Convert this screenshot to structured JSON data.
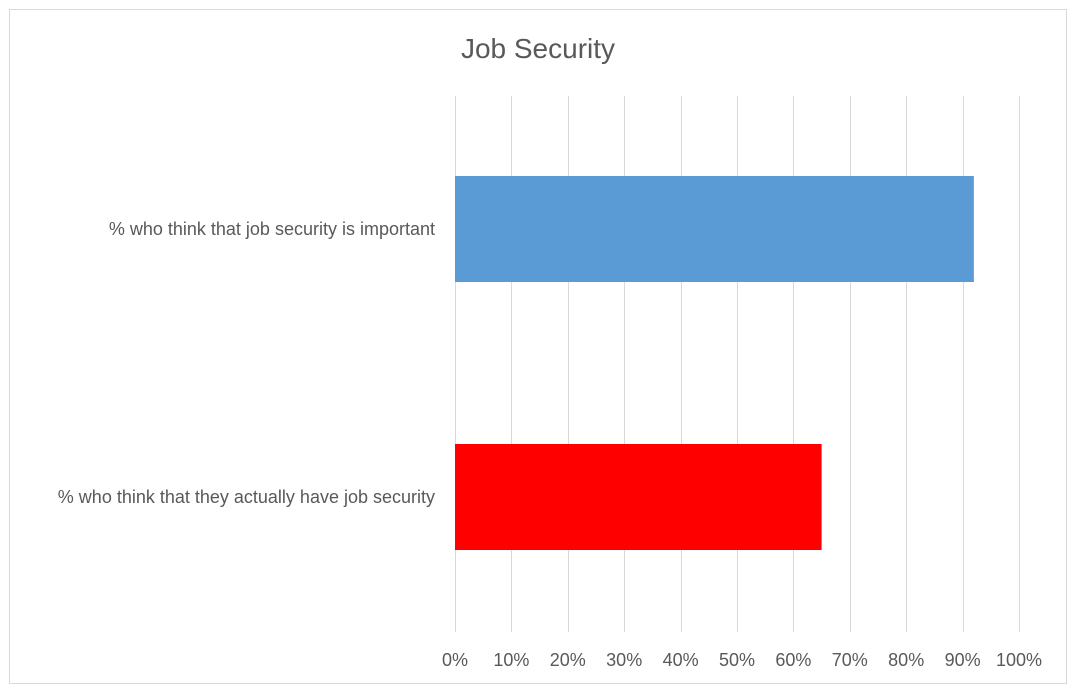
{
  "chart_data": {
    "type": "bar",
    "orientation": "horizontal",
    "title": "Job Security",
    "xlabel": "",
    "ylabel": "",
    "categories": [
      "% who think that job security is important",
      "% who think that they actually have job security"
    ],
    "values": [
      0.92,
      0.65
    ],
    "colors": [
      "#5b9bd5",
      "#ff0000"
    ],
    "xlim": [
      0,
      1
    ],
    "ticks": [
      0,
      0.1,
      0.2,
      0.3,
      0.4,
      0.5,
      0.6,
      0.7,
      0.8,
      0.9,
      1.0
    ],
    "tick_labels": [
      "0%",
      "10%",
      "20%",
      "30%",
      "40%",
      "50%",
      "60%",
      "70%",
      "80%",
      "90%",
      "100%"
    ],
    "grid": true,
    "gridline_color": "#d9d9d9",
    "legend": "none"
  }
}
